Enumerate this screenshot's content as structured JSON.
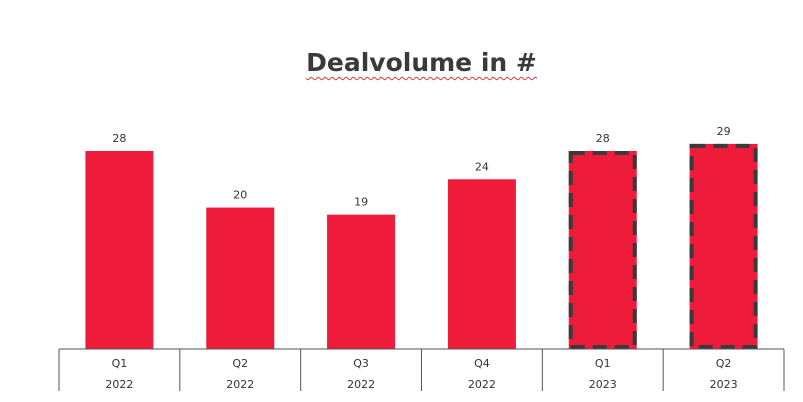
{
  "chart_data": {
    "type": "bar",
    "title": "Dealvolume in #",
    "categories": [
      "Q1",
      "Q2",
      "Q3",
      "Q4",
      "Q1",
      "Q2"
    ],
    "category_groups": [
      "2022",
      "2022",
      "2022",
      "2022",
      "2023",
      "2023"
    ],
    "values": [
      28,
      20,
      19,
      24,
      28,
      29
    ],
    "highlighted": [
      false,
      false,
      false,
      false,
      true,
      true
    ],
    "xlabel": "",
    "ylabel": "",
    "ylim": [
      0,
      30
    ],
    "grid": false,
    "legend": "none",
    "colors": {
      "bar": "#ee1b3b",
      "highlight_border": "#3a3a3a",
      "axis": "#555555",
      "label": "#333333"
    }
  }
}
